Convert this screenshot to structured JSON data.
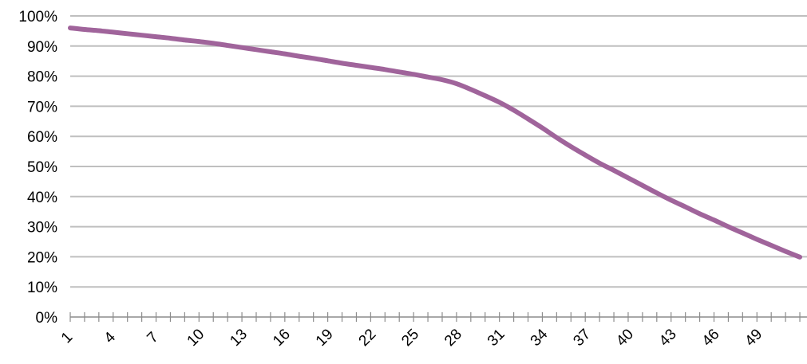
{
  "chart_data": {
    "type": "line",
    "x": [
      1,
      2,
      3,
      4,
      5,
      6,
      7,
      8,
      9,
      10,
      11,
      12,
      13,
      14,
      15,
      16,
      17,
      18,
      19,
      20,
      21,
      22,
      23,
      24,
      25,
      26,
      27,
      28,
      29,
      30,
      31,
      32,
      33,
      34,
      35,
      36,
      37,
      38,
      39,
      40,
      41,
      42,
      43,
      44,
      45,
      46,
      47,
      48,
      49,
      50,
      51,
      52
    ],
    "series": [
      {
        "values": [
          0.96,
          0.955,
          0.951,
          0.946,
          0.941,
          0.936,
          0.931,
          0.926,
          0.92,
          0.915,
          0.909,
          0.902,
          0.895,
          0.888,
          0.881,
          0.874,
          0.866,
          0.859,
          0.851,
          0.843,
          0.836,
          0.829,
          0.822,
          0.814,
          0.806,
          0.797,
          0.788,
          0.775,
          0.756,
          0.735,
          0.713,
          0.687,
          0.658,
          0.628,
          0.596,
          0.566,
          0.538,
          0.511,
          0.487,
          0.462,
          0.437,
          0.412,
          0.388,
          0.366,
          0.343,
          0.322,
          0.3,
          0.279,
          0.258,
          0.238,
          0.218,
          0.199
        ],
        "color": "#a0649b"
      }
    ],
    "x_tick_labels": [
      "1",
      "4",
      "7",
      "10",
      "13",
      "16",
      "19",
      "22",
      "25",
      "28",
      "31",
      "34",
      "37",
      "40",
      "43",
      "46",
      "49"
    ],
    "y_tick_labels": [
      "0%",
      "10%",
      "20%",
      "30%",
      "40%",
      "50%",
      "60%",
      "70%",
      "80%",
      "90%",
      "100%"
    ],
    "ylim": [
      0,
      1
    ],
    "grid": "horizontal",
    "title": "",
    "xlabel": "",
    "ylabel": ""
  }
}
